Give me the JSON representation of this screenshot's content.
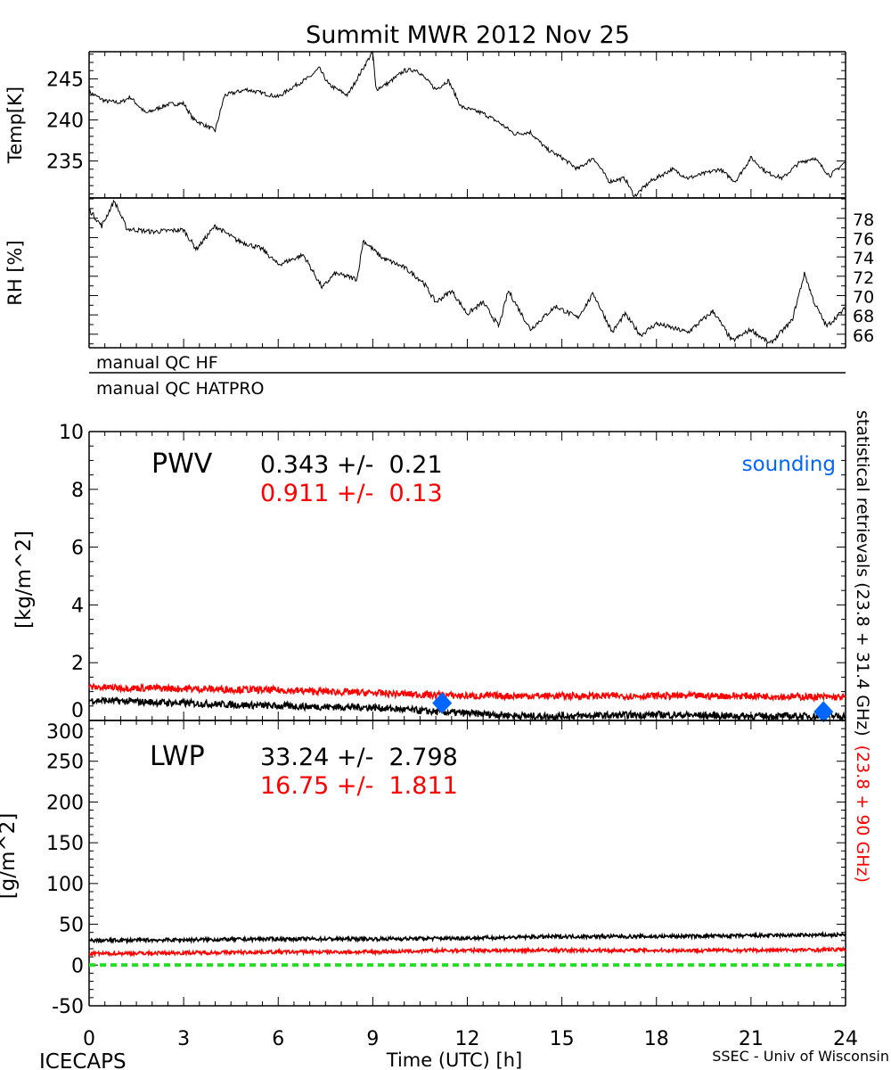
{
  "chart_data": [
    {
      "type": "line",
      "panel": "temperature",
      "title": "Summit MWR 2012 Nov 25",
      "ylabel": "Temp[K]",
      "xlim": [
        0,
        24
      ],
      "ylim": [
        230.5,
        248.3
      ],
      "yticks": [
        235,
        240,
        245
      ],
      "series": [
        {
          "name": "Temp",
          "color": "#000000",
          "x": [
            0,
            0.5,
            1,
            1.3,
            1.8,
            2.5,
            3,
            3.3,
            4,
            4.3,
            5,
            6,
            6.5,
            7,
            7.3,
            7.6,
            8.2,
            8.8,
            9,
            9.1,
            9.5,
            10,
            10.4,
            11,
            11.4,
            11.8,
            12.5,
            13,
            13.5,
            14,
            14.5,
            15,
            15.5,
            16,
            16.5,
            17,
            17.3,
            17.8,
            18.5,
            19,
            20,
            20.5,
            21,
            21.5,
            22,
            22.5,
            23,
            23.5,
            24
          ],
          "y": [
            243.4,
            242.3,
            242.1,
            242.8,
            240.8,
            241.9,
            242,
            240.1,
            238.7,
            243,
            243.7,
            242.8,
            244.1,
            245.2,
            246.3,
            244.3,
            243,
            247,
            248.3,
            243.7,
            244.5,
            246,
            246.1,
            243.7,
            244.8,
            241.6,
            240.8,
            239.7,
            238.3,
            238.5,
            236.5,
            235.4,
            234,
            235.4,
            232.5,
            232.9,
            230.7,
            232.5,
            234,
            232.9,
            234,
            232.5,
            235.4,
            233.6,
            232.9,
            234.7,
            235.4,
            233.2,
            234.9
          ]
        }
      ]
    },
    {
      "type": "line",
      "panel": "rh",
      "ylabel": "RH [%]",
      "xlim": [
        0,
        24
      ],
      "ylim": [
        64.6,
        80.1
      ],
      "yticks": [
        66,
        68,
        70,
        72,
        74,
        76,
        78
      ],
      "series": [
        {
          "name": "RH",
          "color": "#000000",
          "x": [
            0,
            0.4,
            0.8,
            1.2,
            2,
            3,
            3.4,
            4,
            4.7,
            5.5,
            6,
            6.8,
            7.4,
            7.8,
            8.5,
            8.7,
            9.3,
            10,
            10.6,
            11,
            11.5,
            12,
            12.5,
            13,
            13.3,
            14,
            14.8,
            15.5,
            16,
            16.6,
            17,
            17.5,
            18,
            19,
            19.8,
            20.4,
            21,
            21.6,
            22.3,
            22.7,
            23,
            23.4,
            24
          ],
          "y": [
            78.9,
            77.2,
            79.8,
            76.9,
            76.6,
            76.8,
            74.8,
            77.2,
            75.7,
            74.8,
            73.2,
            74.2,
            70.8,
            72.3,
            71.7,
            75.7,
            73.9,
            72.9,
            71.4,
            69.3,
            70.5,
            68.1,
            69.3,
            66.8,
            70.5,
            66.5,
            68.9,
            67.7,
            70.2,
            66.2,
            68.1,
            65.9,
            67.1,
            66.2,
            68.4,
            65.3,
            66.5,
            65,
            67.4,
            72.3,
            69.3,
            66.8,
            68.7
          ]
        }
      ]
    },
    {
      "type": "line",
      "panel": "pwv",
      "label": "PWV",
      "ylabel": "[kg/m^2]",
      "xlim": [
        0,
        24
      ],
      "ylim": [
        0,
        10
      ],
      "yticks": [
        0,
        2,
        4,
        6,
        8,
        10
      ],
      "series": [
        {
          "name": "statistical retrievals (23.8 + 31.4 GHz)",
          "color": "#000000",
          "stat": "0.343 +/-  0.21",
          "x": [
            0,
            3,
            6,
            9,
            11,
            12,
            14,
            15,
            18,
            21,
            24
          ],
          "y": [
            0.7,
            0.6,
            0.5,
            0.45,
            0.3,
            0.25,
            0.15,
            0.15,
            0.2,
            0.15,
            0.15
          ]
        },
        {
          "name": "(23.8 + 90 GHz)",
          "color": "#ff0000",
          "stat": "0.911 +/-  0.13",
          "x": [
            0,
            3,
            6,
            9,
            12,
            15,
            18,
            21,
            24
          ],
          "y": [
            1.15,
            1.1,
            1.05,
            0.95,
            0.85,
            0.85,
            0.85,
            0.85,
            0.8
          ]
        }
      ],
      "markers": {
        "name": "sounding",
        "color": "#0066ff",
        "x": [
          11.2,
          23.3
        ],
        "y": [
          0.6,
          0.3
        ]
      }
    },
    {
      "type": "line",
      "panel": "lwp",
      "label": "LWP",
      "ylabel": "[g/m^2]",
      "xlabel": "Time (UTC) [h]",
      "xlim": [
        0,
        24
      ],
      "xticks": [
        0,
        3,
        6,
        9,
        12,
        15,
        18,
        21,
        24
      ],
      "ylim": [
        -50,
        300
      ],
      "yticks": [
        -50,
        0,
        50,
        100,
        150,
        200,
        250,
        300
      ],
      "series": [
        {
          "name": "black",
          "color": "#000000",
          "stat": "33.24 +/-  2.798",
          "x": [
            0,
            3,
            6,
            9,
            12,
            15,
            18,
            21,
            24
          ],
          "y": [
            30,
            31,
            32,
            32,
            33,
            35,
            35,
            36,
            37
          ]
        },
        {
          "name": "red",
          "color": "#ff0000",
          "stat": "16.75 +/-  1.811",
          "x": [
            0,
            3,
            6,
            9,
            12,
            15,
            18,
            21,
            24
          ],
          "y": [
            14,
            15,
            16,
            16,
            18,
            18,
            18,
            18,
            19
          ]
        }
      ],
      "zero_line": {
        "y": 0,
        "color": "#22dd22"
      }
    }
  ],
  "title": "Summit MWR 2012 Nov 25",
  "qc": {
    "hf": "manual QC HF",
    "hatpro": "manual QC HATPRO"
  },
  "legend": {
    "sounding": "sounding",
    "right_black": "statistical retrievals (23.8 + 31.4 GHz)",
    "right_red": "(23.8 + 90 GHz)"
  },
  "footer": {
    "left": "ICECAPS",
    "center": "Time (UTC) [h]",
    "right": "SSEC - Univ of Wisconsin"
  }
}
